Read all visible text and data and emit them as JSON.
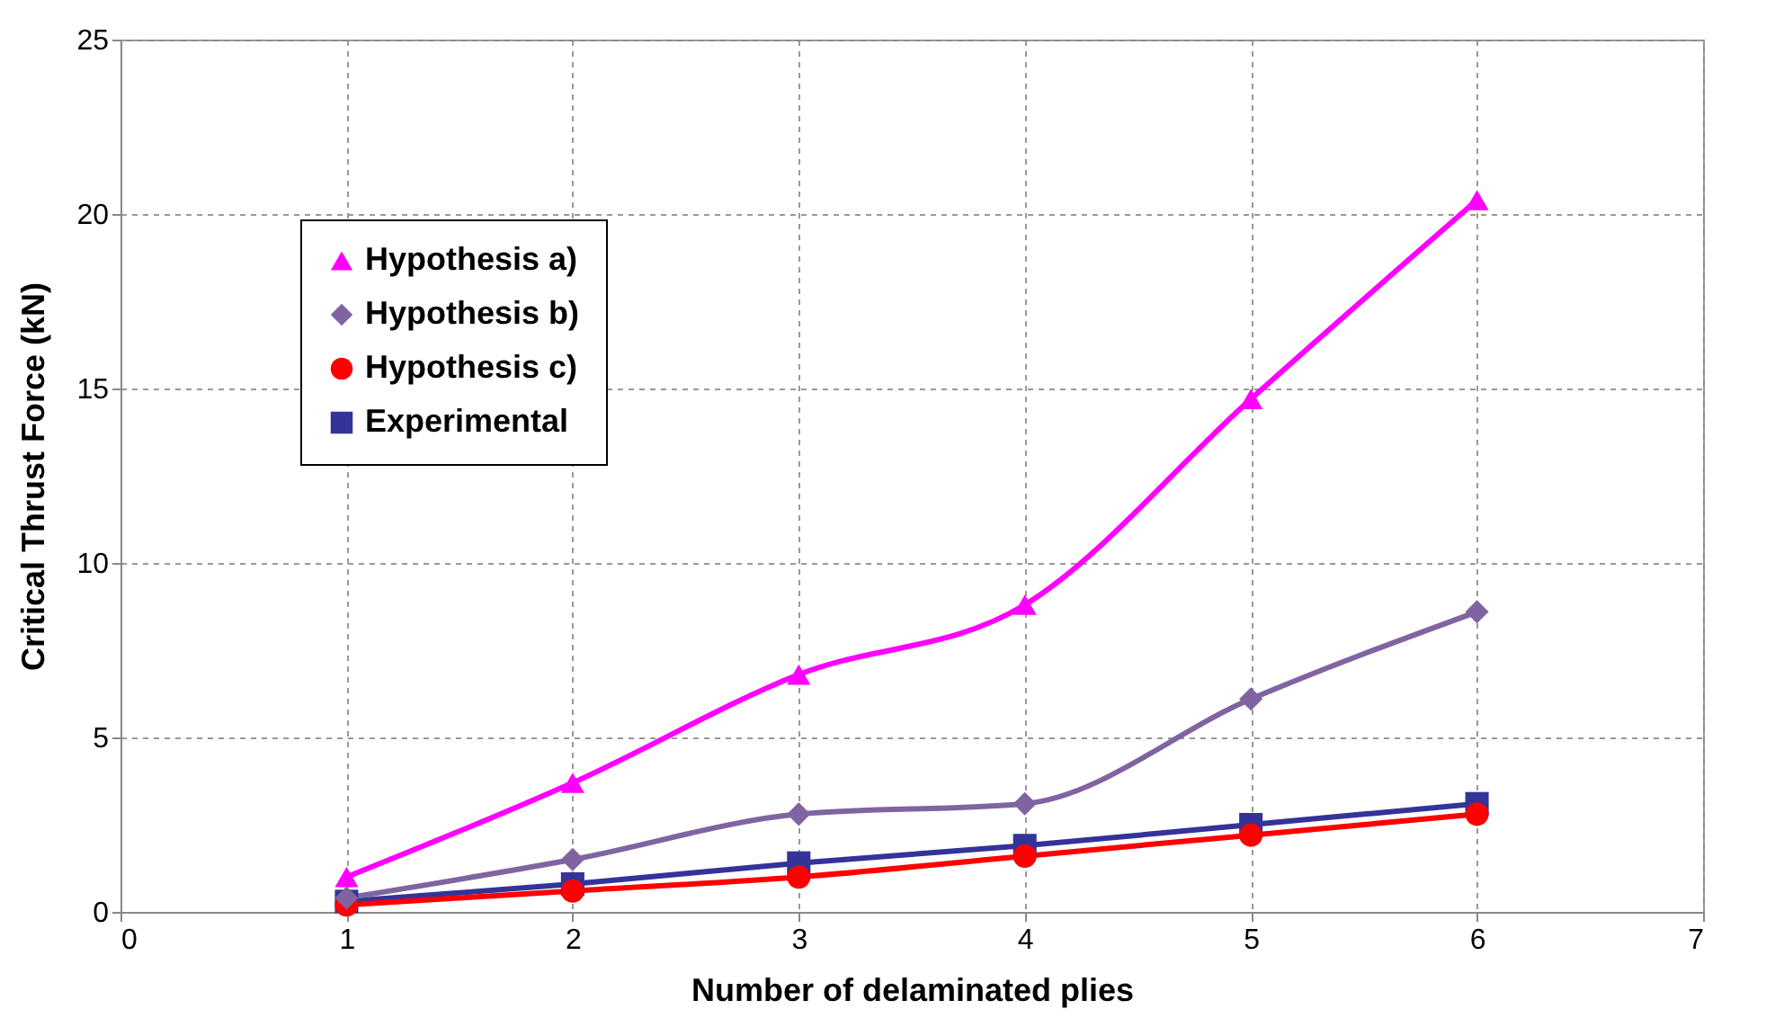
{
  "chart_data": {
    "type": "line",
    "xlabel": "Number of delaminated plies",
    "ylabel": "Critical Thrust Force (kN)",
    "x": [
      1,
      2,
      3,
      4,
      5,
      6
    ],
    "xlim": [
      0,
      7
    ],
    "xticks": [
      0,
      1,
      2,
      3,
      4,
      5,
      6,
      7
    ],
    "ylim": [
      0,
      25
    ],
    "yticks": [
      0,
      5,
      10,
      15,
      20,
      25
    ],
    "grid": true,
    "legend": "top left",
    "series": [
      {
        "name": "Hypothesis a)",
        "color": "#ff00ff",
        "marker": "triangle",
        "values": [
          1.0,
          3.7,
          6.8,
          8.8,
          14.7,
          20.4
        ]
      },
      {
        "name": "Hypothesis b)",
        "color": "#8064a2",
        "marker": "diamond",
        "values": [
          0.4,
          1.5,
          2.8,
          3.1,
          6.1,
          8.6
        ]
      },
      {
        "name": "Hypothesis c)",
        "color": "#ff0000",
        "marker": "circle",
        "values": [
          0.2,
          0.6,
          1.0,
          1.6,
          2.2,
          2.8
        ]
      },
      {
        "name": "Experimental",
        "color": "#333399",
        "marker": "square",
        "values": [
          0.3,
          0.8,
          1.4,
          1.9,
          2.5,
          3.1
        ]
      }
    ]
  }
}
